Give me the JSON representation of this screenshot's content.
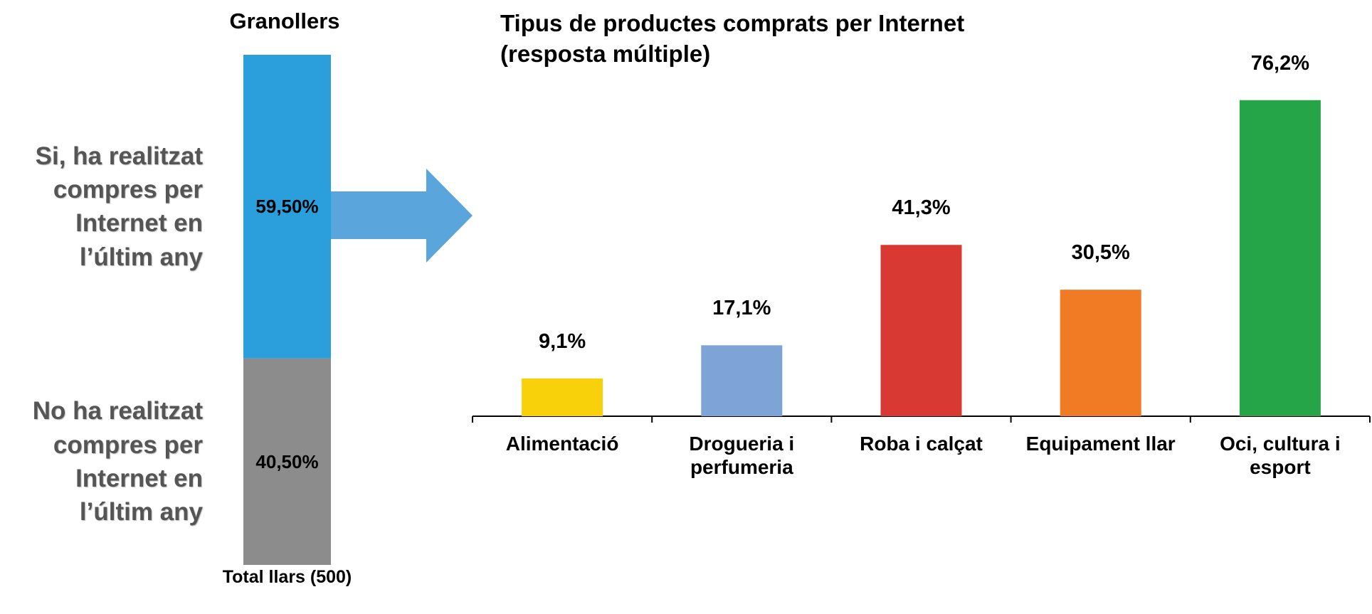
{
  "chart_data": [
    {
      "type": "stacked_bar",
      "title": "Granollers",
      "categories": [
        "Total llars (500)"
      ],
      "series": [
        {
          "name": "Si, ha realitzat compres per Internet en l’últim any",
          "color": "#2a9fdb",
          "values": [
            59.5
          ],
          "value_labels": [
            "59,50%"
          ]
        },
        {
          "name": "No ha realitzat compres per Internet en l’últim any",
          "color": "#8c8c8c",
          "values": [
            40.5
          ],
          "value_labels": [
            "40,50%"
          ]
        }
      ],
      "ylim": [
        0,
        100
      ]
    },
    {
      "type": "bar",
      "title": "Tipus de productes comprats per Internet (resposta múltiple)",
      "categories": [
        "Alimentació",
        "Drogueria i perfumeria",
        "Roba i calçat",
        "Equipament llar",
        "Oci, cultura i esport"
      ],
      "values": [
        9.1,
        17.1,
        41.3,
        30.5,
        76.2
      ],
      "value_labels": [
        "9,1%",
        "17,1%",
        "41,3%",
        "30,5%",
        "76,2%"
      ],
      "colors": [
        "#f9d10a",
        "#7ea3d6",
        "#d83a33",
        "#f07b24",
        "#25a448"
      ],
      "ylim": [
        0,
        100
      ]
    }
  ]
}
